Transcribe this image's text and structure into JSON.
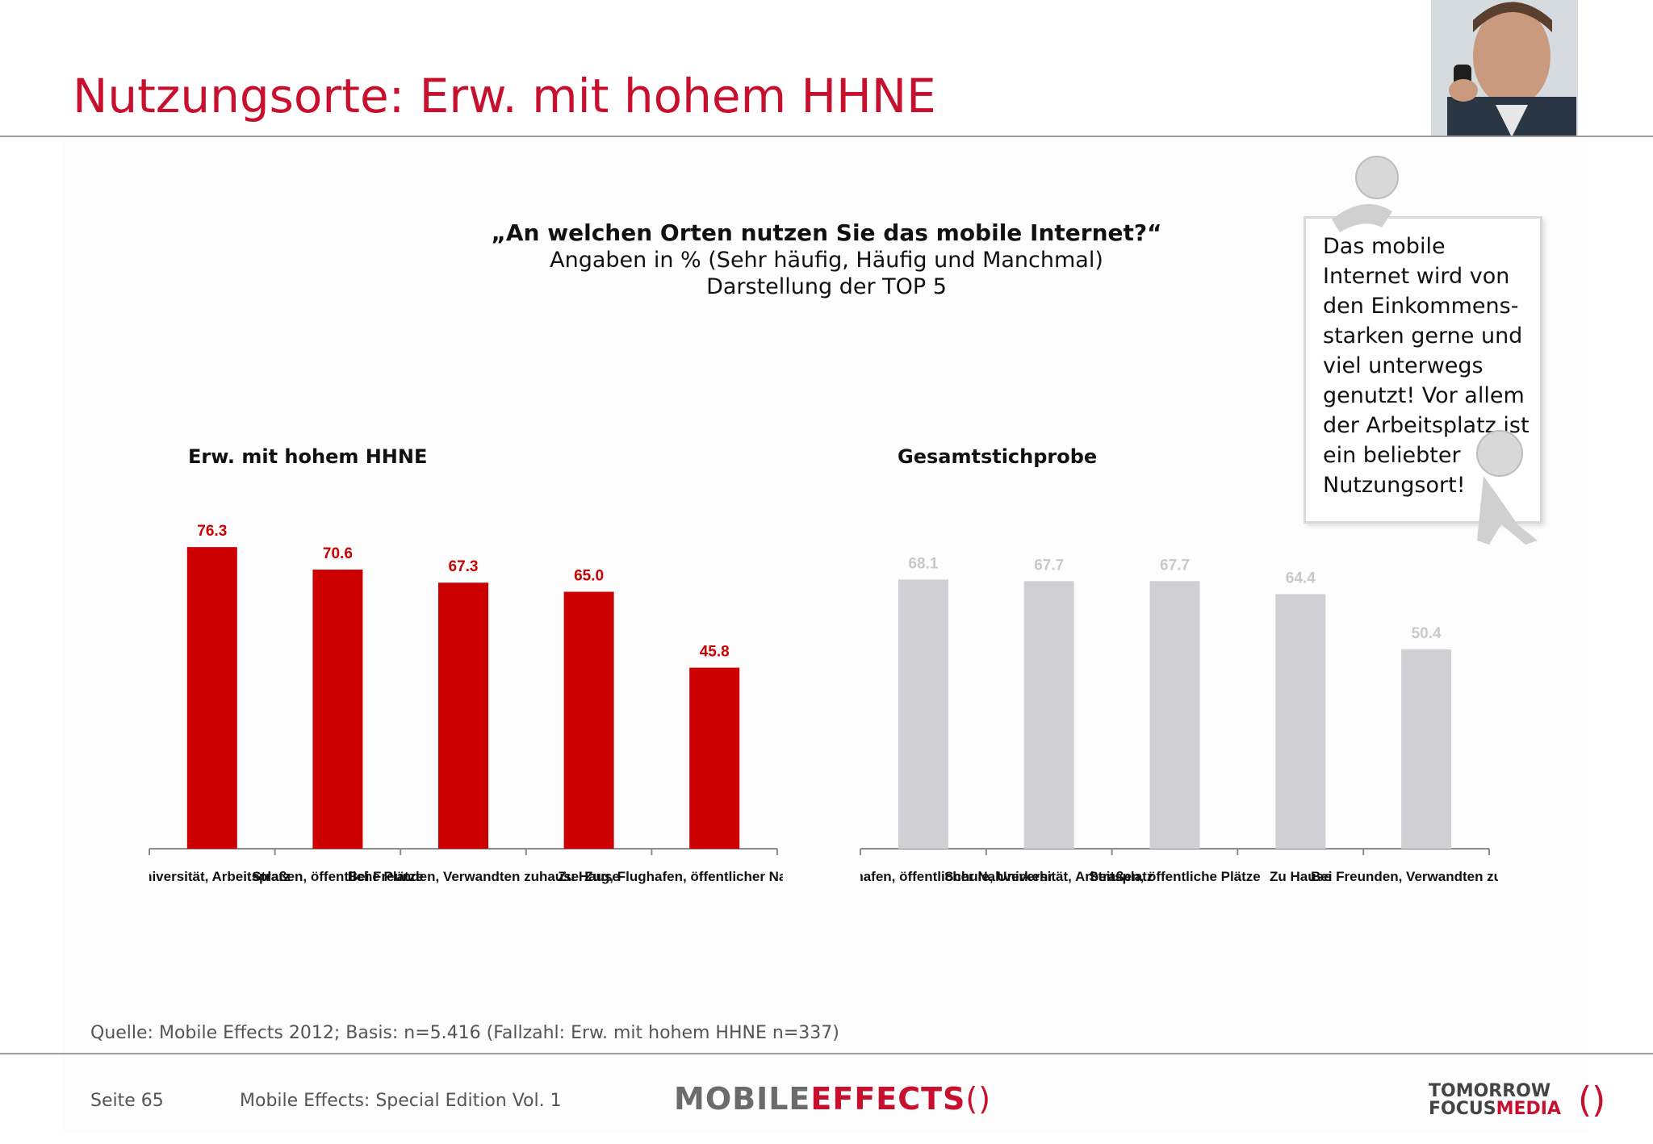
{
  "header": {
    "title": "Nutzungsorte: Erw. mit hohem HHNE"
  },
  "question": {
    "line1": "„An welchen Orten nutzen Sie das mobile Internet?“",
    "line2": "Angaben in % (Sehr häufig, Häufig und Manchmal)",
    "line3": "Darstellung der TOP 5"
  },
  "note": {
    "text": "Das mobile Internet wird von den Einkommens-starken gerne und viel unterwegs genutzt! Vor allem der Arbeitsplatz ist ein beliebter Nutzungsort!"
  },
  "colors": {
    "accent": "#c8102e",
    "bar_primary": "#cc0000",
    "bar_secondary": "#d0cfd3",
    "label_secondary": "#c9c9c9"
  },
  "chart_data": [
    {
      "type": "bar",
      "title": "Erw. mit hohem HHNE",
      "categories": [
        "Universität, Arbeitsplatz",
        "Straßen, öffentliche Plätze",
        "Bei Freunden, Verwandten zuhause",
        "Zu Hause",
        "Zug, Flughafen, öffentlicher Nahverkehr"
      ],
      "values": [
        76.3,
        70.6,
        67.3,
        65.0,
        45.8
      ],
      "data_labels": [
        "76.3",
        "70.6",
        "67.3",
        "65.0",
        "45.8"
      ],
      "ylim": [
        0,
        100
      ],
      "grid": false,
      "color": "#cc0000"
    },
    {
      "type": "bar",
      "title": "Gesamtstichprobe",
      "categories": [
        "Zug, Flughafen, öffentlicher Nahverkehr",
        "Schule, Universität, Arbeitsplatz",
        "Straßen, öffentliche Plätze",
        "Zu Hause",
        "Bei Freunden, Verwandten zuhause"
      ],
      "values": [
        68.1,
        67.7,
        67.7,
        64.4,
        50.4
      ],
      "data_labels": [
        "68.1",
        "67.7",
        "67.7",
        "64.4",
        "50.4"
      ],
      "ylim": [
        0,
        100
      ],
      "grid": false,
      "color": "#d0cfd3"
    }
  ],
  "footer": {
    "source": "Quelle: Mobile Effects 2012; Basis: n=5.416 (Fallzahl: Erw. mit hohem HHNE n=337)",
    "page": "Seite 65",
    "doc_title": "Mobile Effects: Special Edition Vol. 1",
    "logo_mobile": "MOBILE",
    "logo_effects": "EFFECTS",
    "logo_paren": "()",
    "tfm_line1": "TOMORROW",
    "tfm_line2a": "FOCUS",
    "tfm_line2b": "MEDIA",
    "tfm_paren": "()"
  }
}
